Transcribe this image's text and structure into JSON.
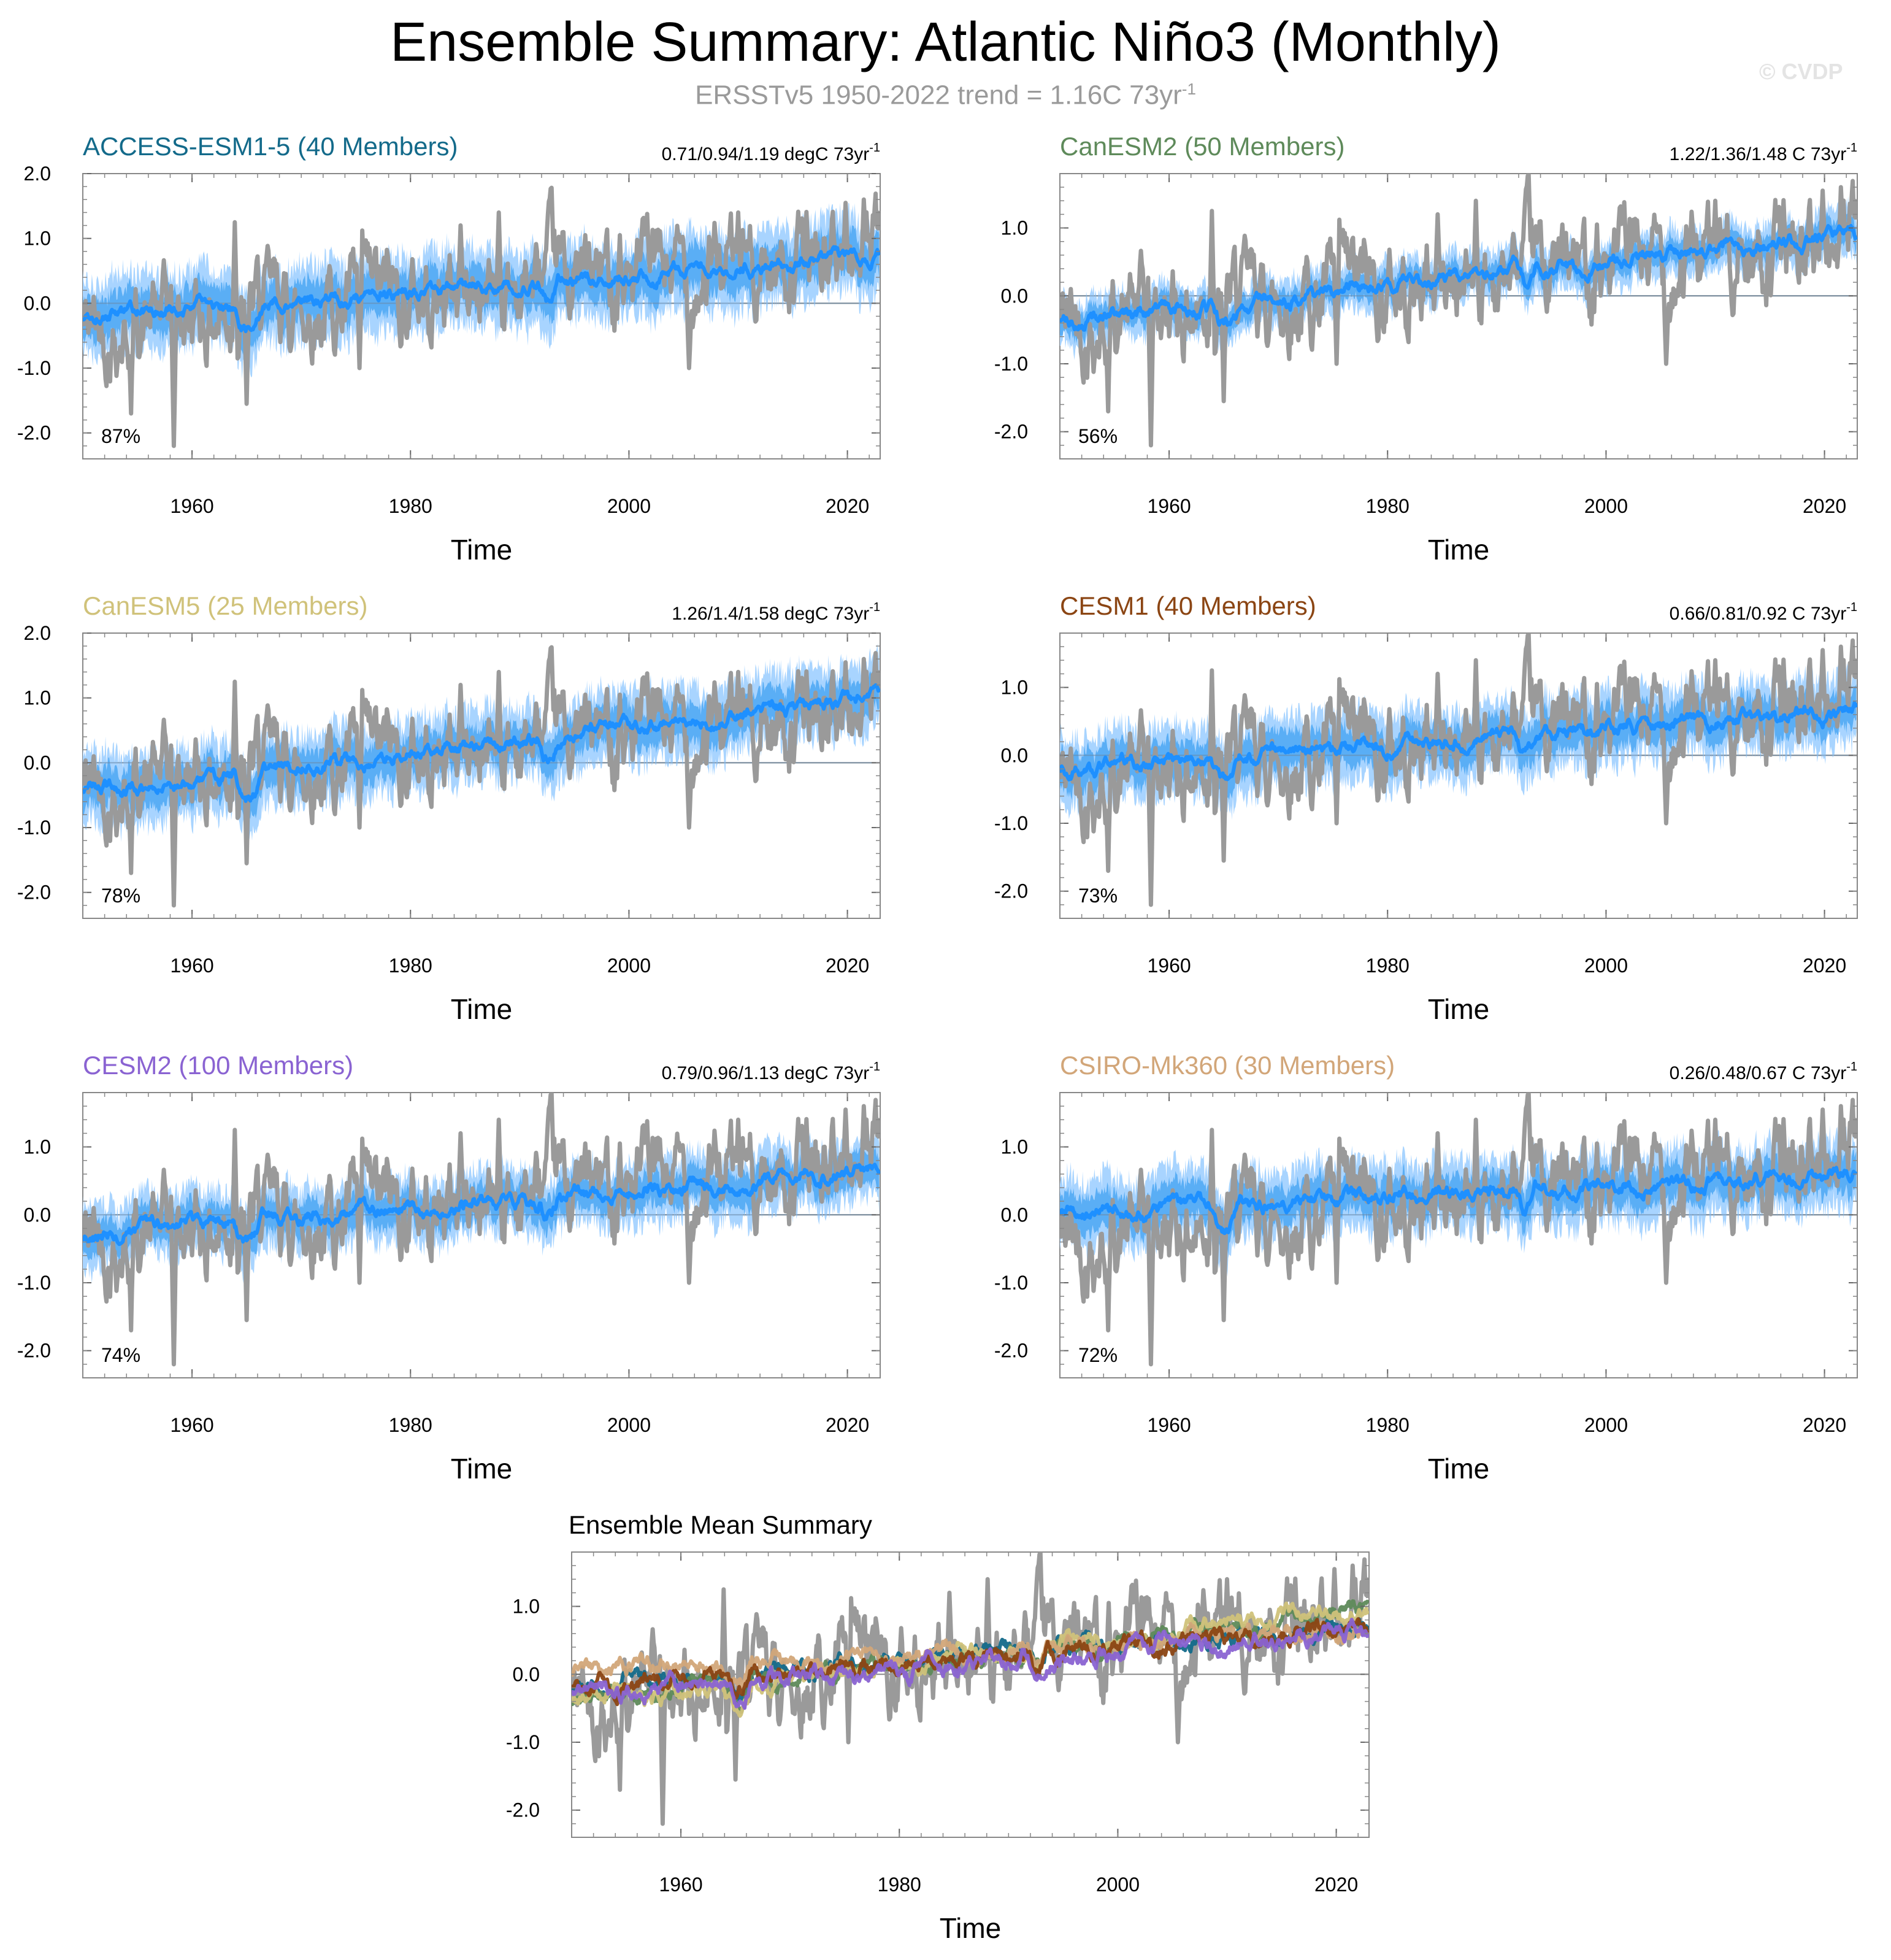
{
  "title": "Ensemble Summary: Atlantic Niño3 (Monthly)",
  "subtitle": {
    "text": "ERSSTv5 1950-2022 trend = 1.16C 73yr",
    "exponent": "-1"
  },
  "watermark": "© CVDP",
  "colors": {
    "observed": "#9a9a9a",
    "ensemble_mean": "#1e90ff",
    "spread_outer": "#a8d4ff",
    "spread_inner": "#5aaef5"
  },
  "chart_data": [
    {
      "type": "line",
      "title": "ACCESS-ESM1-5 (40 Members)",
      "title_color": "#136a8a",
      "trend": "0.71/0.94/1.19 degC 73yr",
      "trend_exponent": "-1",
      "percent": "87%",
      "xlabel": "Time",
      "ylabel": "",
      "xlim": [
        1950,
        2023
      ],
      "ylim": [
        -2.4,
        2.0
      ],
      "xticks": [
        "1960",
        "1980",
        "2000",
        "2020"
      ],
      "yticks": [
        "2.0",
        "1.0",
        "0.0",
        "-1.0",
        "-2.0"
      ],
      "series": [
        {
          "name": "ERSSTv5 observed",
          "color": "#9a9a9a"
        },
        {
          "name": "Ensemble mean",
          "color": "#1e90ff",
          "start": -0.2,
          "end": 0.72
        }
      ],
      "spread": 0.48
    },
    {
      "type": "line",
      "title": "CanESM2 (50 Members)",
      "title_color": "#5e8a5a",
      "trend": "1.22/1.36/1.48 C 73yr",
      "trend_exponent": "-1",
      "percent": "56%",
      "xlabel": "Time",
      "ylabel": "",
      "xlim": [
        1950,
        2023
      ],
      "ylim": [
        -2.4,
        1.8
      ],
      "xticks": [
        "1960",
        "1980",
        "2000",
        "2020"
      ],
      "yticks": [
        "1.0",
        "0.0",
        "-1.0",
        "-2.0"
      ],
      "series": [
        {
          "name": "ERSSTv5 observed",
          "color": "#9a9a9a"
        },
        {
          "name": "Ensemble mean",
          "color": "#1e90ff",
          "start": -0.4,
          "end": 0.9
        }
      ],
      "spread": 0.28
    },
    {
      "type": "line",
      "title": "CanESM5 (25 Members)",
      "title_color": "#d0c27a",
      "trend": "1.26/1.4/1.58 degC 73yr",
      "trend_exponent": "-1",
      "percent": "78%",
      "xlabel": "Time",
      "ylabel": "",
      "xlim": [
        1950,
        2023
      ],
      "ylim": [
        -2.4,
        2.0
      ],
      "xticks": [
        "1960",
        "1980",
        "2000",
        "2020"
      ],
      "yticks": [
        "2.0",
        "1.0",
        "0.0",
        "-1.0",
        "-2.0"
      ],
      "series": [
        {
          "name": "ERSSTv5 observed",
          "color": "#9a9a9a"
        },
        {
          "name": "Ensemble mean",
          "color": "#1e90ff",
          "start": -0.45,
          "end": 1.0
        }
      ],
      "spread": 0.45
    },
    {
      "type": "line",
      "title": "CESM1 (40 Members)",
      "title_color": "#8b4513",
      "trend": "0.66/0.81/0.92 C 73yr",
      "trend_exponent": "-1",
      "percent": "73%",
      "xlabel": "Time",
      "ylabel": "",
      "xlim": [
        1950,
        2023
      ],
      "ylim": [
        -2.4,
        1.8
      ],
      "xticks": [
        "1960",
        "1980",
        "2000",
        "2020"
      ],
      "yticks": [
        "1.0",
        "0.0",
        "-1.0",
        "-2.0"
      ],
      "series": [
        {
          "name": "ERSSTv5 observed",
          "color": "#9a9a9a"
        },
        {
          "name": "Ensemble mean",
          "color": "#1e90ff",
          "start": -0.2,
          "end": 0.65
        }
      ],
      "spread": 0.42
    },
    {
      "type": "line",
      "title": "CESM2 (100 Members)",
      "title_color": "#8a63d2",
      "trend": "0.79/0.96/1.13 degC 73yr",
      "trend_exponent": "-1",
      "percent": "74%",
      "xlabel": "Time",
      "ylabel": "",
      "xlim": [
        1950,
        2023
      ],
      "ylim": [
        -2.4,
        1.8
      ],
      "xticks": [
        "1960",
        "1980",
        "2000",
        "2020"
      ],
      "yticks": [
        "1.0",
        "0.0",
        "-1.0",
        "-2.0"
      ],
      "series": [
        {
          "name": "ERSSTv5 observed",
          "color": "#9a9a9a"
        },
        {
          "name": "Ensemble mean",
          "color": "#1e90ff",
          "start": -0.3,
          "end": 0.65
        }
      ],
      "spread": 0.38
    },
    {
      "type": "line",
      "title": "CSIRO-Mk360 (30 Members)",
      "title_color": "#d2a679",
      "trend": "0.26/0.48/0.67 C 73yr",
      "trend_exponent": "-1",
      "percent": "72%",
      "xlabel": "Time",
      "ylabel": "",
      "xlim": [
        1950,
        2023
      ],
      "ylim": [
        -2.4,
        1.8
      ],
      "xticks": [
        "1960",
        "1980",
        "2000",
        "2020"
      ],
      "yticks": [
        "1.0",
        "0.0",
        "-1.0",
        "-2.0"
      ],
      "series": [
        {
          "name": "ERSSTv5 observed",
          "color": "#9a9a9a"
        },
        {
          "name": "Ensemble mean",
          "color": "#1e90ff",
          "start": 0.05,
          "end": 0.6
        }
      ],
      "spread": 0.42
    },
    {
      "type": "line",
      "title": "Ensemble Mean Summary",
      "title_color": "#000000",
      "xlabel": "Time",
      "ylabel": "",
      "xlim": [
        1950,
        2023
      ],
      "ylim": [
        -2.4,
        1.8
      ],
      "xticks": [
        "1960",
        "1980",
        "2000",
        "2020"
      ],
      "yticks": [
        "1.0",
        "0.0",
        "-1.0",
        "-2.0"
      ],
      "series": [
        {
          "name": "ERSSTv5 observed",
          "color": "#9a9a9a"
        },
        {
          "name": "ACCESS-ESM1-5",
          "color": "#136a8a",
          "start": -0.2,
          "end": 0.72
        },
        {
          "name": "CanESM2",
          "color": "#5e8a5a",
          "start": -0.4,
          "end": 0.9
        },
        {
          "name": "CanESM5",
          "color": "#d0c27a",
          "start": -0.45,
          "end": 1.0
        },
        {
          "name": "CSIRO-Mk360",
          "color": "#d2a679",
          "start": 0.05,
          "end": 0.6
        },
        {
          "name": "CESM1",
          "color": "#8b4513",
          "start": -0.2,
          "end": 0.65
        },
        {
          "name": "CESM2",
          "color": "#8a63d2",
          "start": -0.3,
          "end": 0.65
        }
      ]
    }
  ]
}
